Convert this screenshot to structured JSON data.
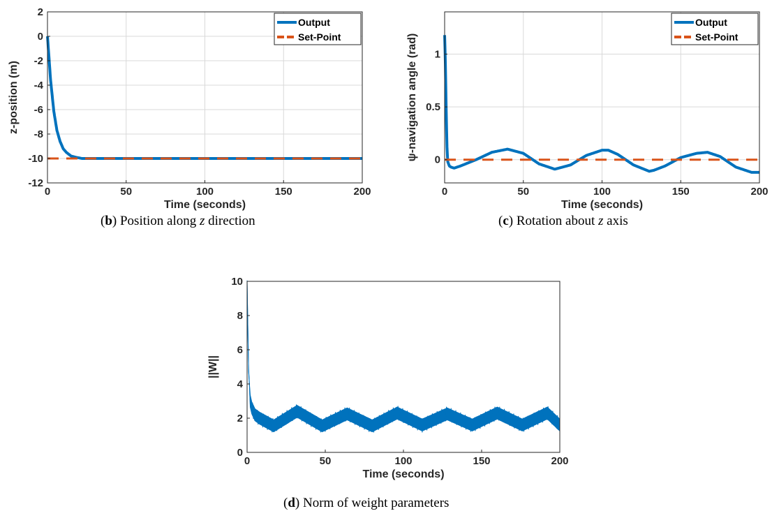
{
  "colors": {
    "output": "#0072BD",
    "setpoint": "#D95319",
    "grid": "#d9d9d9",
    "axis": "#262626"
  },
  "chart_data": [
    {
      "id": "b",
      "type": "line",
      "xlabel": "Time (seconds)",
      "ylabel": "z-position (m)",
      "xlim": [
        0,
        200
      ],
      "ylim": [
        -12,
        2
      ],
      "xticks": [
        0,
        50,
        100,
        150,
        200
      ],
      "yticks": [
        2,
        0,
        -2,
        -4,
        -6,
        -8,
        -10,
        -12
      ],
      "ytick_labels": [
        "2",
        "0",
        "-2",
        "-4",
        "-6",
        "-8",
        "-10",
        "-12"
      ],
      "grid": true,
      "legend": {
        "position": "top-right",
        "entries": [
          "Output",
          "Set-Point"
        ]
      },
      "caption": {
        "letter": "b",
        "pre": "Position along ",
        "var": "z",
        "post": " direction"
      },
      "series": [
        {
          "name": "Output",
          "style": "solid",
          "x": [
            0,
            2,
            4,
            6,
            8,
            10,
            12,
            15,
            18,
            22,
            30,
            50,
            100,
            150,
            200
          ],
          "values": [
            0,
            -3.6,
            -6.1,
            -7.7,
            -8.6,
            -9.2,
            -9.5,
            -9.8,
            -9.9,
            -10.0,
            -10.0,
            -10.0,
            -10.0,
            -10.0,
            -10.0
          ]
        },
        {
          "name": "Set-Point",
          "style": "dashed",
          "x": [
            0,
            200
          ],
          "values": [
            -10,
            -10
          ]
        }
      ]
    },
    {
      "id": "c",
      "type": "line",
      "xlabel": "Time (seconds)",
      "ylabel": "ψ-navigation angle (rad)",
      "xlim": [
        0,
        200
      ],
      "ylim": [
        -0.22,
        1.4
      ],
      "xticks": [
        0,
        50,
        100,
        150,
        200
      ],
      "yticks": [
        1,
        0.5,
        0
      ],
      "ytick_labels": [
        "1",
        "0.5",
        "0"
      ],
      "grid": true,
      "legend": {
        "position": "top-right",
        "entries": [
          "Output",
          "Set-Point"
        ]
      },
      "caption": {
        "letter": "c",
        "pre": "Rotation about ",
        "var": "z",
        "post": " axis"
      },
      "series": [
        {
          "name": "Output",
          "style": "solid",
          "x": [
            0,
            0.5,
            1,
            1.5,
            2,
            3,
            4,
            6,
            10,
            20,
            30,
            40,
            50,
            60,
            70,
            80,
            90,
            100,
            104,
            110,
            120,
            130,
            133,
            140,
            150,
            160,
            167,
            175,
            185,
            195,
            200
          ],
          "values": [
            1.18,
            0.9,
            0.45,
            0.12,
            -0.02,
            -0.06,
            -0.07,
            -0.08,
            -0.06,
            0.0,
            0.07,
            0.1,
            0.06,
            -0.04,
            -0.09,
            -0.05,
            0.04,
            0.09,
            0.09,
            0.05,
            -0.05,
            -0.11,
            -0.1,
            -0.06,
            0.02,
            0.06,
            0.07,
            0.03,
            -0.07,
            -0.12,
            -0.12
          ]
        },
        {
          "name": "Set-Point",
          "style": "dashed",
          "x": [
            0,
            200
          ],
          "values": [
            0,
            0
          ]
        }
      ]
    },
    {
      "id": "d",
      "type": "line",
      "xlabel": "Time (seconds)",
      "ylabel": "||W||",
      "xlim": [
        0,
        200
      ],
      "ylim": [
        0,
        10
      ],
      "xticks": [
        0,
        50,
        100,
        150,
        200
      ],
      "yticks": [
        10,
        8,
        6,
        4,
        2,
        0
      ],
      "ytick_labels": [
        "10",
        "8",
        "6",
        "4",
        "2",
        "0"
      ],
      "grid": false,
      "legend": null,
      "caption": {
        "letter": "d",
        "pre": "Norm of weight parameters",
        "var": "",
        "post": ""
      },
      "series": [
        {
          "style": "noisy-band",
          "band_halfwidth": 0.35,
          "x": [
            0,
            0.5,
            1,
            2,
            3,
            5,
            8,
            17,
            32,
            48,
            64,
            80,
            96,
            112,
            128,
            144,
            160,
            176,
            192,
            200
          ],
          "values": [
            10,
            7.2,
            4.8,
            3.0,
            2.6,
            2.2,
            2.0,
            1.55,
            2.4,
            1.55,
            2.25,
            1.55,
            2.3,
            1.6,
            2.25,
            1.6,
            2.3,
            1.6,
            2.3,
            1.6
          ]
        }
      ]
    }
  ]
}
